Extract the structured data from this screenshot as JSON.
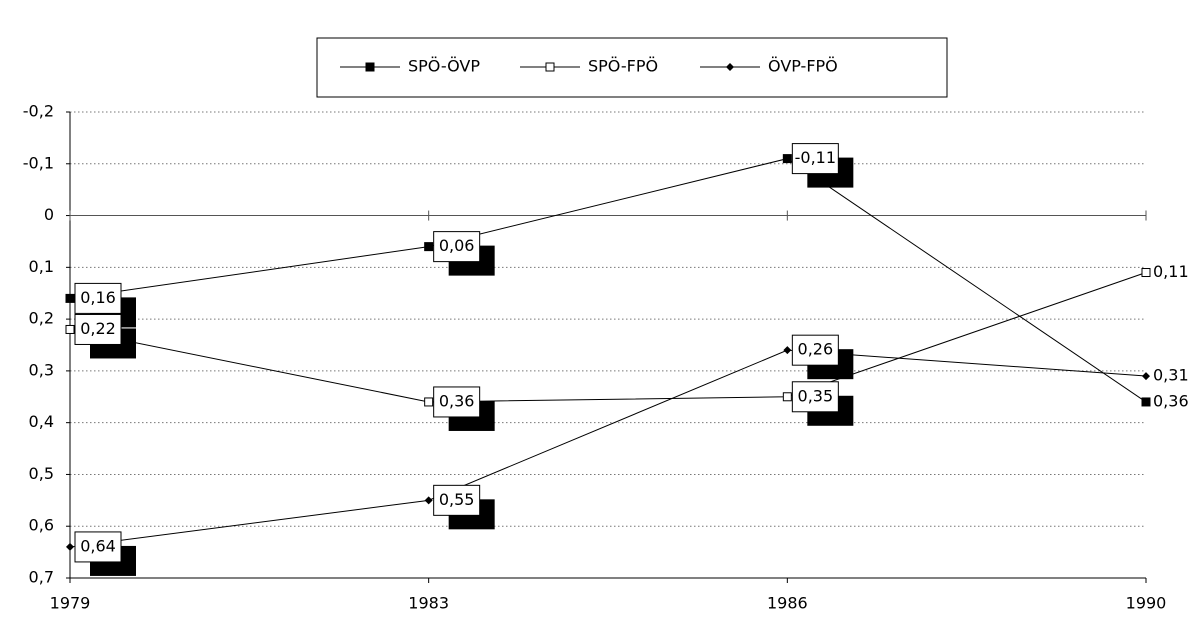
{
  "chart_data": {
    "type": "line",
    "categories": [
      "1979",
      "1983",
      "1986",
      "1990"
    ],
    "series": [
      {
        "name": "SPÖ-ÖVP",
        "color": "#000000",
        "marker": "square",
        "values": [
          0.16,
          0.06,
          -0.11,
          0.36
        ],
        "value_labels": [
          "0,16",
          "0,06",
          "-0,11",
          "0,36"
        ]
      },
      {
        "name": "SPÖ-FPÖ",
        "color": "#000000",
        "marker": "open-square",
        "values": [
          0.22,
          0.36,
          0.35,
          0.11
        ],
        "value_labels": [
          "0,22",
          "0,36",
          "0,35",
          "0,11"
        ]
      },
      {
        "name": "ÖVP-FPÖ",
        "color": "#000000",
        "marker": "diamond",
        "values": [
          0.64,
          0.55,
          0.26,
          0.31
        ],
        "value_labels": [
          "0,64",
          "0,55",
          "0,26",
          "0,31"
        ]
      }
    ],
    "ylim": [
      -0.2,
      0.7
    ],
    "y_reversed": true,
    "yticks": [
      {
        "value": -0.2,
        "label": "-0,2"
      },
      {
        "value": -0.1,
        "label": "-0,1"
      },
      0,
      {
        "value": 0.1,
        "label": "0,1"
      },
      {
        "value": 0.2,
        "label": "0,2"
      },
      {
        "value": 0.3,
        "label": "0,3"
      },
      {
        "value": 0.4,
        "label": "0,4"
      },
      {
        "value": 0.5,
        "label": "0,5"
      },
      {
        "value": 0.6,
        "label": "0,6"
      },
      {
        "value": 0.7,
        "label": "0,7"
      }
    ],
    "grid": true,
    "legend": "top"
  }
}
